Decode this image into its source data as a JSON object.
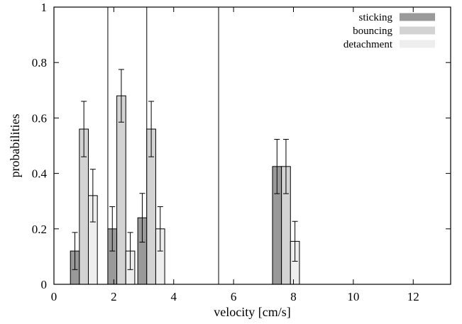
{
  "chart_data": {
    "type": "bar",
    "xlabel": "velocity [cm/s]",
    "ylabel": "probabilities",
    "xlim": [
      0,
      13.25
    ],
    "ylim": [
      0,
      1
    ],
    "x_ticks": [
      0,
      2,
      4,
      6,
      8,
      10,
      12
    ],
    "y_ticks": [
      0,
      0.2,
      0.4,
      0.6,
      0.8,
      1
    ],
    "x_tick_labels": [
      "0",
      "2",
      "4",
      "6",
      "8",
      "10",
      "12"
    ],
    "y_tick_labels": [
      "0",
      "0.2",
      "0.4",
      "0.6",
      "0.8",
      "1"
    ],
    "grid": false,
    "legend_position": "top-right",
    "bar_width": 0.3,
    "group_centers": [
      1.0,
      2.25,
      3.25,
      7.75
    ],
    "vertical_lines": [
      1.8,
      3.1,
      5.5
    ],
    "series": [
      {
        "name": "sticking",
        "color": "#999999",
        "offset": -0.3,
        "values": [
          0.12,
          0.2,
          0.24,
          0.425
        ],
        "errors": [
          0.067,
          0.08,
          0.088,
          0.098
        ]
      },
      {
        "name": "bouncing",
        "color": "#d3d3d3",
        "offset": 0.0,
        "values": [
          0.56,
          0.68,
          0.56,
          0.425
        ],
        "errors": [
          0.1,
          0.095,
          0.1,
          0.098
        ]
      },
      {
        "name": "detachment",
        "color": "#eeeeee",
        "offset": 0.3,
        "values": [
          0.32,
          0.12,
          0.2,
          0.155
        ],
        "errors": [
          0.095,
          0.067,
          0.08,
          0.072
        ]
      }
    ]
  }
}
